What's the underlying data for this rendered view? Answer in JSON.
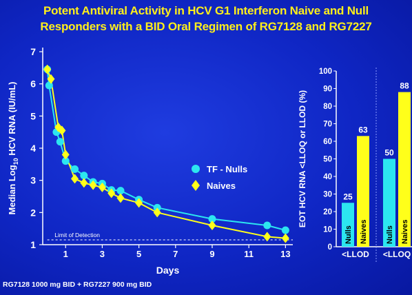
{
  "title_lines": [
    "Potent Antiviral Activity in HCV G1 Interferon Naive and Null",
    "Responders with a BID Oral Regimen of RG7128 and RG7227"
  ],
  "footnote": "RG7128 1000 mg BID + RG7227 900 mg BID",
  "colors": {
    "background": "#1430d0",
    "title": "#ffef1a",
    "nulls": "#2ce6f0",
    "naives": "#ffff1a",
    "axis": "#ffffff"
  },
  "chart_data": [
    {
      "type": "line",
      "xlabel": "Days",
      "ylabel_parts": {
        "pre": "Median Log",
        "sub": "10",
        "post": " HCV RNA (IU/mL)"
      },
      "xticks": [
        1,
        3,
        5,
        7,
        9,
        11,
        13
      ],
      "xtick_labels": [
        "1",
        "3",
        "5",
        "7",
        "9",
        "11",
        "13"
      ],
      "yticks": [
        1,
        2,
        3,
        4,
        5,
        6,
        7
      ],
      "ytick_labels": [
        "1",
        "2",
        "3",
        "4",
        "5",
        "6",
        "7"
      ],
      "xlim": [
        -0.25,
        13.4
      ],
      "ylim": [
        1,
        7
      ],
      "grid": false,
      "legend_position": "center-right",
      "limit_of_detection": {
        "label": "Limit of Detection",
        "value": 1.15
      },
      "series": [
        {
          "name": "TF - Nulls",
          "marker": "circle",
          "color": "#2ce6f0",
          "x": [
            0,
            0.1,
            0.5,
            0.7,
            1,
            1.5,
            2,
            2.5,
            3,
            3.5,
            4,
            5,
            6,
            9,
            12,
            13
          ],
          "y": [
            6.45,
            5.95,
            4.5,
            4.2,
            3.6,
            3.35,
            3.15,
            2.95,
            2.9,
            2.7,
            2.68,
            2.4,
            2.15,
            1.8,
            1.6,
            1.45
          ]
        },
        {
          "name": "Naives",
          "marker": "diamond",
          "color": "#ffff1a",
          "x": [
            0,
            0.2,
            0.6,
            0.8,
            1,
            1.5,
            2,
            2.5,
            3,
            3.5,
            4,
            5,
            6,
            9,
            12,
            13
          ],
          "y": [
            6.45,
            6.15,
            4.65,
            4.55,
            3.8,
            3.05,
            2.92,
            2.85,
            2.78,
            2.6,
            2.45,
            2.3,
            2.0,
            1.6,
            1.25,
            1.2
          ]
        }
      ]
    },
    {
      "type": "bar",
      "ylabel": "EOT HCV RNA <LLOQ or LLOD (%)",
      "ylim": [
        0,
        100
      ],
      "yticks": [
        0,
        10,
        20,
        30,
        40,
        50,
        60,
        70,
        80,
        90,
        100
      ],
      "ytick_labels": [
        "0",
        "10",
        "20",
        "30",
        "40",
        "50",
        "60",
        "70",
        "80",
        "90",
        "100"
      ],
      "groups": [
        {
          "label": "<LLOD",
          "bars": [
            {
              "name": "Nulls",
              "value": 25,
              "value_label": "25",
              "color": "#2ce6f0"
            },
            {
              "name": "Naives",
              "value": 63,
              "value_label": "63",
              "color": "#ffff1a"
            }
          ]
        },
        {
          "label": "<LLOQ",
          "bars": [
            {
              "name": "Nulls",
              "value": 50,
              "value_label": "50",
              "color": "#2ce6f0"
            },
            {
              "name": "Naives",
              "value": 88,
              "value_label": "88",
              "color": "#ffff1a"
            }
          ]
        }
      ]
    }
  ]
}
